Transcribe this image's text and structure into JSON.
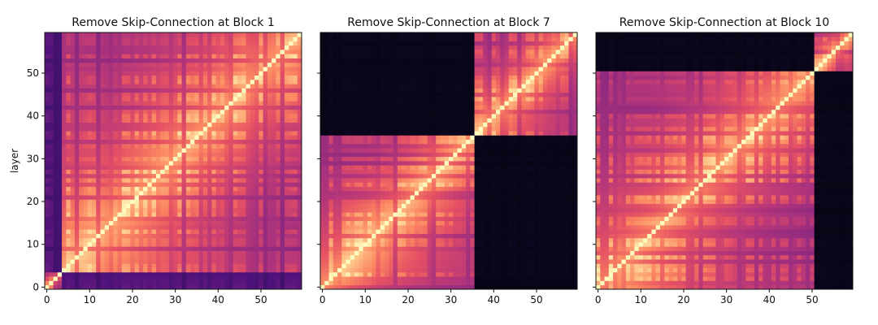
{
  "chart_data": [
    {
      "type": "heatmap",
      "title": "Remove Skip-Connection at Block 1",
      "ylabel": "layer",
      "xlabel": "",
      "size": 60,
      "colormap": "magma",
      "diagonal_value": 1.0,
      "blocks": [
        [
          0,
          4
        ],
        [
          4,
          60
        ]
      ],
      "within_block_peak": 0.95,
      "within_block_far": 0.45,
      "cross_block_value": 0.3,
      "x_ticks": [
        0,
        10,
        20,
        30,
        40,
        50
      ],
      "y_ticks": [
        0,
        10,
        20,
        30,
        40,
        50
      ],
      "xlim": [
        0,
        59
      ],
      "ylim": [
        0,
        59
      ]
    },
    {
      "type": "heatmap",
      "title": "Remove Skip-Connection at Block 7",
      "ylabel": "",
      "xlabel": "",
      "size": 60,
      "colormap": "magma",
      "diagonal_value": 1.0,
      "blocks": [
        [
          0,
          36
        ],
        [
          36,
          60
        ]
      ],
      "within_block_peak": 0.95,
      "within_block_far": 0.45,
      "cross_block_value": 0.05,
      "x_ticks": [
        0,
        10,
        20,
        30,
        40,
        50
      ],
      "y_ticks": [
        0,
        10,
        20,
        30,
        40,
        50
      ],
      "xlim": [
        0,
        59
      ],
      "ylim": [
        0,
        59
      ]
    },
    {
      "type": "heatmap",
      "title": "Remove Skip-Connection at Block 10",
      "ylabel": "",
      "xlabel": "",
      "size": 60,
      "colormap": "magma",
      "diagonal_value": 1.0,
      "blocks": [
        [
          0,
          51
        ],
        [
          51,
          60
        ]
      ],
      "within_block_peak": 0.95,
      "within_block_far": 0.45,
      "cross_block_value": 0.05,
      "x_ticks": [
        0,
        10,
        20,
        30,
        40,
        50
      ],
      "y_ticks": [
        0,
        10,
        20,
        30,
        40,
        50
      ],
      "xlim": [
        0,
        59
      ],
      "ylim": [
        0,
        59
      ]
    }
  ]
}
